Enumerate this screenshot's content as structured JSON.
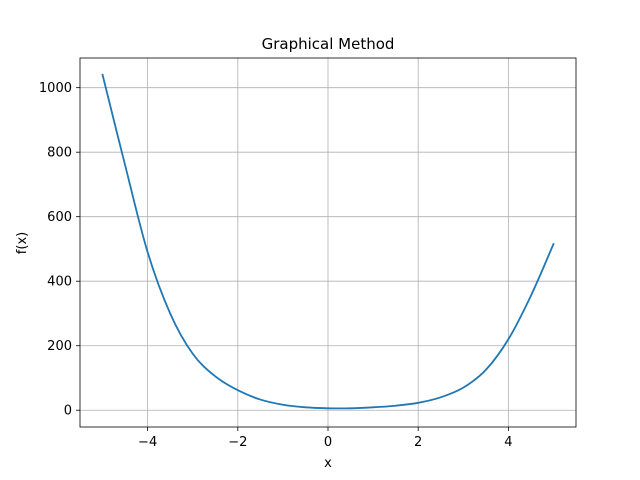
{
  "chart_data": {
    "type": "line",
    "title": "Graphical Method",
    "xlabel": "x",
    "ylabel": "f(x)",
    "xlim": [
      -5.5,
      5.5
    ],
    "ylim": [
      -52,
      1092
    ],
    "grid": true,
    "x_ticks": [
      {
        "value": -4,
        "label": "−4"
      },
      {
        "value": -2,
        "label": "−2"
      },
      {
        "value": 0,
        "label": "0"
      },
      {
        "value": 2,
        "label": "2"
      },
      {
        "value": 4,
        "label": "4"
      }
    ],
    "y_ticks": [
      {
        "value": 0,
        "label": "0"
      },
      {
        "value": 200,
        "label": "200"
      },
      {
        "value": 400,
        "label": "400"
      },
      {
        "value": 600,
        "label": "600"
      },
      {
        "value": 800,
        "label": "800"
      },
      {
        "value": 1000,
        "label": "1000"
      }
    ],
    "series": [
      {
        "color": "#1f77b4",
        "x": [
          -5,
          -4.5,
          -4,
          -3.5,
          -3,
          -2.5,
          -2,
          -1.5,
          -1,
          -0.5,
          0,
          0.5,
          1,
          1.5,
          2,
          2.5,
          3,
          3.5,
          4,
          4.5,
          5
        ],
        "y": [
          1040,
          760,
          490,
          300,
          175,
          105,
          62,
          33,
          17,
          9,
          6,
          6,
          9,
          14,
          23,
          40,
          70,
          125,
          220,
          355,
          515
        ]
      }
    ]
  }
}
